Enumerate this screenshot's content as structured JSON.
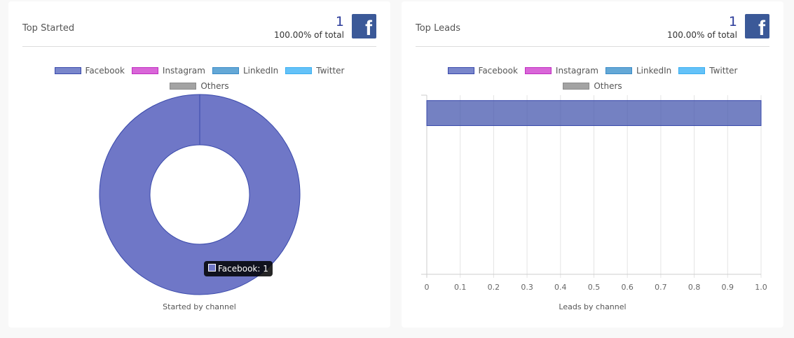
{
  "legend": [
    {
      "label": "Facebook",
      "fill": "#7986cb",
      "stroke": "#3949ab"
    },
    {
      "label": "Instagram",
      "fill": "#d966d8",
      "stroke": "#c02ec0"
    },
    {
      "label": "LinkedIn",
      "fill": "#64a8d6",
      "stroke": "#3a8bc7"
    },
    {
      "label": "Twitter",
      "fill": "#64c2f8",
      "stroke": "#3aaef0"
    },
    {
      "label": "Others",
      "fill": "#a3a3a3",
      "stroke": "#8a8a8a"
    }
  ],
  "cards": [
    {
      "title": "Top Started",
      "count": "1",
      "percent": "100.00% of total",
      "caption": "Started by channel",
      "tooltip": "Facebook: 1"
    },
    {
      "title": "Top Leads",
      "count": "1",
      "percent": "100.00% of total",
      "caption": "Leads by channel"
    }
  ],
  "chart_data": [
    {
      "type": "pie",
      "title": "Top Started",
      "xlabel": "Started by channel",
      "categories": [
        "Facebook",
        "Instagram",
        "LinkedIn",
        "Twitter",
        "Others"
      ],
      "values": [
        1,
        0,
        0,
        0,
        0
      ],
      "legend": "top"
    },
    {
      "type": "bar",
      "orientation": "horizontal",
      "title": "Top Leads",
      "xlabel": "Leads by channel",
      "categories": [
        "Facebook",
        "Instagram",
        "LinkedIn",
        "Twitter",
        "Others"
      ],
      "values": [
        1,
        0,
        0,
        0,
        0
      ],
      "xlim": [
        0,
        1
      ],
      "xticks": [
        "0",
        "0.1",
        "0.2",
        "0.3",
        "0.4",
        "0.5",
        "0.6",
        "0.7",
        "0.8",
        "0.9",
        "1.0"
      ],
      "grid": true,
      "legend": "top"
    }
  ]
}
